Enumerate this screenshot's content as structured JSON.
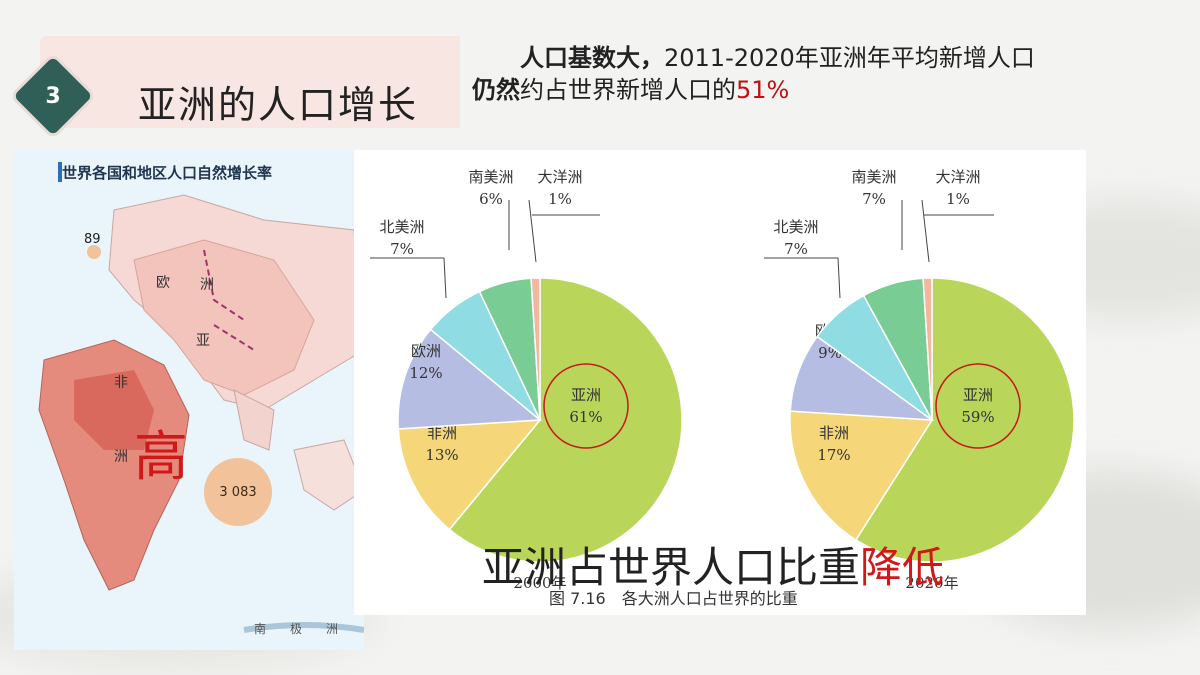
{
  "section": {
    "number": "3",
    "title": "亚洲的人口增长"
  },
  "intro": {
    "line1_bold": "人口基数大，",
    "line1_rest": "2011-2020年亚洲年平均新增人口",
    "line2_bold": "仍然",
    "line2_rest": "约占世界新增人口的",
    "line2_pct": "51%"
  },
  "map": {
    "title": "世界各国和地区人口自然增长率",
    "continent_labels": {
      "europe": "欧",
      "asia_zhou": "洲",
      "asia_ya": "亚",
      "africa_fei": "非",
      "africa_zhou": "洲",
      "antarctica": "南　　极　　洲"
    },
    "value_89": "89",
    "value_3083": "3 083",
    "highlight": "高"
  },
  "chart_data": [
    {
      "type": "pie",
      "year": "2000年",
      "slices": [
        {
          "name": "亚洲",
          "value": 61,
          "label": "61%",
          "color": "#b9d65a"
        },
        {
          "name": "非洲",
          "value": 13,
          "label": "13%",
          "color": "#f5d77a"
        },
        {
          "name": "欧洲",
          "value": 12,
          "label": "12%",
          "color": "#b6bde3"
        },
        {
          "name": "北美洲",
          "value": 7,
          "label": "7%",
          "color": "#8fdde2"
        },
        {
          "name": "南美洲",
          "value": 6,
          "label": "6%",
          "color": "#78cc94"
        },
        {
          "name": "大洋洲",
          "value": 1,
          "label": "1%",
          "color": "#f1b89e"
        }
      ]
    },
    {
      "type": "pie",
      "year": "2020年",
      "slices": [
        {
          "name": "亚洲",
          "value": 59,
          "label": "59%",
          "color": "#b9d65a"
        },
        {
          "name": "非洲",
          "value": 17,
          "label": "17%",
          "color": "#f5d77a"
        },
        {
          "name": "欧洲",
          "value": 9,
          "label": "9%",
          "color": "#b6bde3"
        },
        {
          "name": "北美洲",
          "value": 7,
          "label": "7%",
          "color": "#8fdde2"
        },
        {
          "name": "南美洲",
          "value": 7,
          "label": "7%",
          "color": "#78cc94"
        },
        {
          "name": "大洋洲",
          "value": 1,
          "label": "1%",
          "color": "#f1b89e"
        }
      ]
    }
  ],
  "caption": "图 7.16　各大洲人口占世界的比重",
  "overlay": {
    "main": "亚洲占世界人口比重",
    "emph": "降低"
  }
}
